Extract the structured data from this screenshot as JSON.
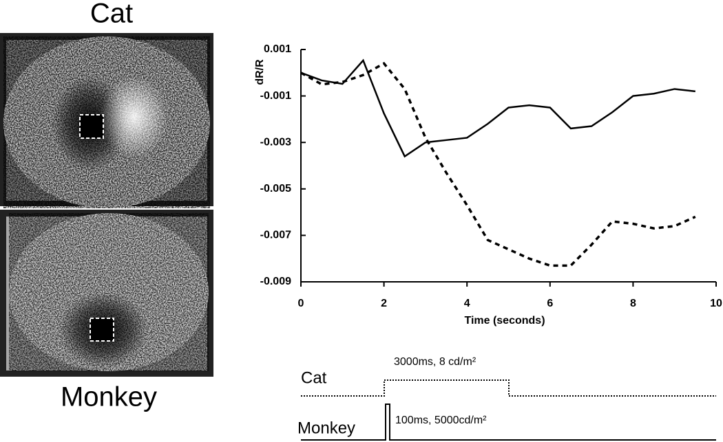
{
  "panel_labels": {
    "top": "Cat",
    "bottom": "Monkey"
  },
  "chart_data": {
    "type": "line",
    "ylabel": "dR/R",
    "xlabel": "Time (seconds)",
    "x": [
      0,
      0.5,
      1,
      1.5,
      2,
      2.5,
      3,
      3.5,
      4,
      4.5,
      5,
      5.5,
      6,
      6.5,
      7,
      7.5,
      8,
      8.5,
      9,
      9.5
    ],
    "series": [
      {
        "color": "#000000",
        "dash": false,
        "values": [
          0.0,
          -0.00033,
          -0.00048,
          0.00053,
          -0.00175,
          -0.0036,
          -0.003,
          -0.0029,
          -0.0028,
          -0.0022,
          -0.0015,
          -0.0014,
          -0.0015,
          -0.0024,
          -0.0023,
          -0.0017,
          -0.001,
          -0.0009,
          -0.0007,
          -0.0008
        ]
      },
      {
        "color": "#000000",
        "dash": true,
        "values": [
          0.0,
          -0.0005,
          -0.0004,
          -0.0001,
          0.0004,
          -0.0007,
          -0.0028,
          -0.0043,
          -0.0057,
          -0.0072,
          -0.0076,
          -0.008,
          -0.0083,
          -0.0083,
          -0.0074,
          -0.0064,
          -0.0065,
          -0.0067,
          -0.0066,
          -0.0062
        ]
      }
    ],
    "xlim": [
      0,
      10
    ],
    "xticks": [
      0,
      2,
      4,
      6,
      8,
      10
    ],
    "ylim": [
      -0.009,
      0.001
    ],
    "yticks": [
      0.001,
      -0.001,
      -0.003,
      -0.005,
      -0.007,
      -0.009
    ]
  },
  "stimulus": {
    "rows": [
      {
        "label": "Cat",
        "text": "3000ms, 8 cd/m²"
      },
      {
        "label": "Monkey",
        "text": "100ms, 5000cd/m²"
      }
    ]
  }
}
